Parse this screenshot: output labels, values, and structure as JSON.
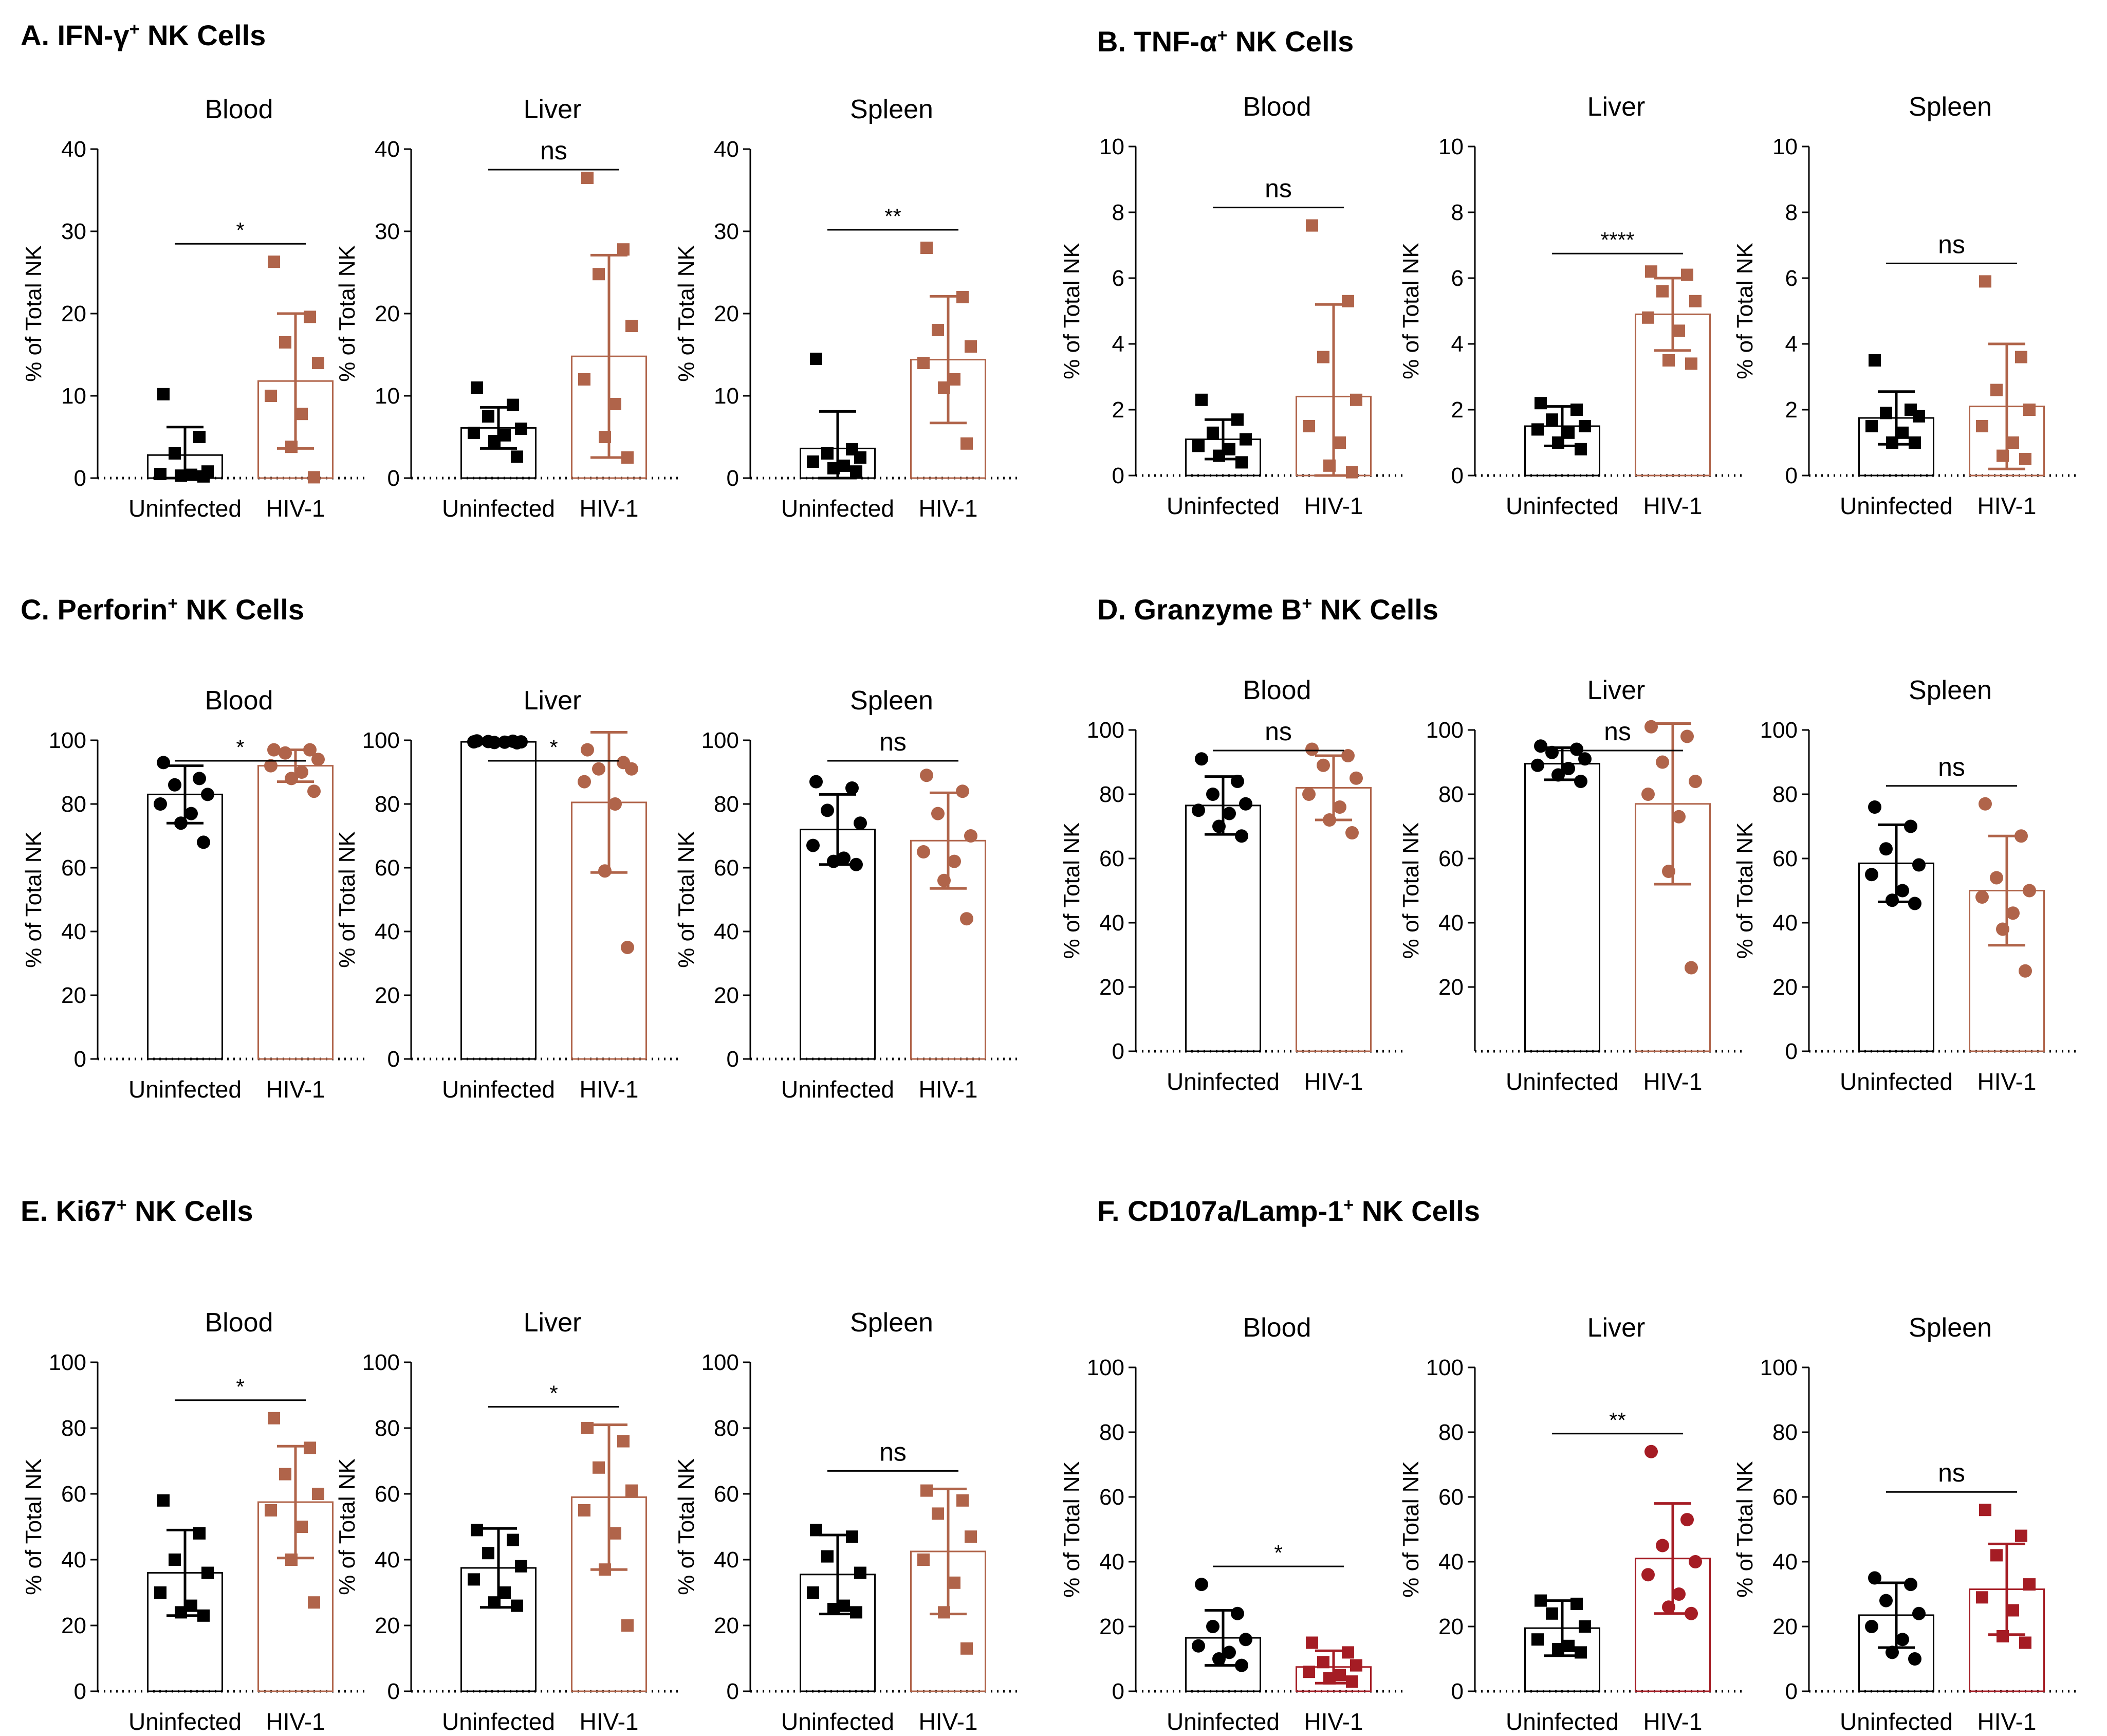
{
  "figure": {
    "y_axis_label": "% of Total NK",
    "group_labels": [
      "Uninfected",
      "HIV-1"
    ]
  },
  "colors": {
    "uninfected": "#000000",
    "hiv_brown": "#b0644a",
    "hiv_red": "#a51c24",
    "axis": "#000000"
  },
  "chart_data": [
    {
      "panel": "A. IFN-γ⁺ NK Cells",
      "type": "bar",
      "charts": [
        {
          "title": "Blood",
          "ylim": [
            0,
            40
          ],
          "ticks": [
            0,
            10,
            20,
            30,
            40
          ],
          "sig": "*",
          "groups": [
            {
              "name": "Uninfected",
              "mean": 2.8,
              "sd": 3.4,
              "marker": "square",
              "points": [
                10.2,
                5.0,
                3.0,
                0.8,
                0.5,
                0.4,
                0.3,
                0.2
              ]
            },
            {
              "name": "HIV-1",
              "mean": 11.8,
              "sd": 8.2,
              "marker": "square",
              "points": [
                26.3,
                19.6,
                16.5,
                14.0,
                10.0,
                7.8,
                3.8,
                0.1
              ]
            }
          ]
        },
        {
          "title": "Liver",
          "ylim": [
            0,
            40
          ],
          "ticks": [
            0,
            10,
            20,
            30,
            40
          ],
          "sig": "ns",
          "groups": [
            {
              "name": "Uninfected",
              "mean": 6.1,
              "sd": 2.5,
              "marker": "square",
              "points": [
                11.0,
                8.9,
                7.5,
                6.0,
                5.5,
                5.2,
                4.5,
                2.6
              ]
            },
            {
              "name": "HIV-1",
              "mean": 14.8,
              "sd": 12.3,
              "marker": "square",
              "points": [
                36.5,
                27.8,
                24.8,
                18.5,
                12.0,
                9.0,
                5.0,
                2.5
              ]
            }
          ]
        },
        {
          "title": "Spleen",
          "ylim": [
            0,
            40
          ],
          "ticks": [
            0,
            10,
            20,
            30,
            40
          ],
          "sig": "**",
          "groups": [
            {
              "name": "Uninfected",
              "mean": 3.6,
              "sd": 4.5,
              "marker": "square",
              "points": [
                14.5,
                3.5,
                3.0,
                2.5,
                2.0,
                1.5,
                1.2,
                0.8
              ]
            },
            {
              "name": "HIV-1",
              "mean": 14.4,
              "sd": 7.7,
              "marker": "square",
              "points": [
                28.0,
                22.0,
                18.0,
                16.0,
                14.0,
                12.0,
                11.0,
                4.2
              ]
            }
          ]
        }
      ]
    },
    {
      "panel": "B. TNF-α⁺ NK Cells",
      "type": "bar",
      "charts": [
        {
          "title": "Blood",
          "ylim": [
            0,
            10
          ],
          "ticks": [
            0,
            2,
            4,
            6,
            8,
            10
          ],
          "sig": "ns",
          "groups": [
            {
              "name": "Uninfected",
              "mean": 1.1,
              "sd": 0.6,
              "marker": "square",
              "points": [
                2.3,
                1.7,
                1.3,
                1.1,
                0.9,
                0.8,
                0.6,
                0.4
              ]
            },
            {
              "name": "HIV-1",
              "mean": 2.4,
              "sd": 2.8,
              "marker": "square",
              "points": [
                7.6,
                5.3,
                3.6,
                2.3,
                1.5,
                1.0,
                0.3,
                0.1
              ]
            }
          ]
        },
        {
          "title": "Liver",
          "ylim": [
            0,
            10
          ],
          "ticks": [
            0,
            2,
            4,
            6,
            8,
            10
          ],
          "sig": "****",
          "groups": [
            {
              "name": "Uninfected",
              "mean": 1.5,
              "sd": 0.6,
              "marker": "square",
              "points": [
                2.2,
                2.0,
                1.7,
                1.5,
                1.4,
                1.3,
                1.0,
                0.8
              ]
            },
            {
              "name": "HIV-1",
              "mean": 4.9,
              "sd": 1.1,
              "marker": "square",
              "points": [
                6.2,
                6.1,
                5.6,
                5.3,
                4.8,
                4.4,
                3.5,
                3.4
              ]
            }
          ]
        },
        {
          "title": "Spleen",
          "ylim": [
            0,
            10
          ],
          "ticks": [
            0,
            2,
            4,
            6,
            8,
            10
          ],
          "sig": "ns",
          "groups": [
            {
              "name": "Uninfected",
              "mean": 1.75,
              "sd": 0.8,
              "marker": "square",
              "points": [
                3.5,
                2.0,
                1.9,
                1.8,
                1.5,
                1.3,
                1.0,
                1.0
              ]
            },
            {
              "name": "HIV-1",
              "mean": 2.1,
              "sd": 1.9,
              "marker": "square",
              "points": [
                5.9,
                3.6,
                2.6,
                2.0,
                1.5,
                1.0,
                0.6,
                0.5
              ]
            }
          ]
        }
      ]
    },
    {
      "panel": "C. Perforin⁺ NK Cells",
      "type": "bar",
      "charts": [
        {
          "title": "Blood",
          "ylim": [
            0,
            100
          ],
          "ticks": [
            0,
            20,
            40,
            60,
            80,
            100
          ],
          "sig": "*",
          "groups": [
            {
              "name": "Uninfected",
              "mean": 83,
              "sd": 9,
              "marker": "circle",
              "points": [
                93,
                88,
                86,
                83,
                80,
                77,
                74,
                68
              ]
            },
            {
              "name": "HIV-1",
              "mean": 92,
              "sd": 5,
              "marker": "circle",
              "points": [
                97,
                97,
                96,
                94,
                92,
                90,
                88,
                84
              ]
            }
          ]
        },
        {
          "title": "Liver",
          "ylim": [
            0,
            100
          ],
          "ticks": [
            0,
            20,
            40,
            60,
            80,
            100
          ],
          "sig": "*",
          "groups": [
            {
              "name": "Uninfected",
              "mean": 99.5,
              "sd": 0.3,
              "marker": "circle",
              "points": [
                99.8,
                99.7,
                99.6,
                99.5,
                99.5,
                99.4,
                99.3,
                99.2
              ]
            },
            {
              "name": "HIV-1",
              "mean": 80.5,
              "sd": 22,
              "marker": "circle",
              "points": [
                97,
                93,
                91,
                91,
                87,
                80,
                59,
                35
              ]
            }
          ]
        },
        {
          "title": "Spleen",
          "ylim": [
            0,
            100
          ],
          "ticks": [
            0,
            20,
            40,
            60,
            80,
            100
          ],
          "sig": "ns",
          "groups": [
            {
              "name": "Uninfected",
              "mean": 72,
              "sd": 11,
              "marker": "circle",
              "points": [
                87,
                85,
                78,
                74,
                67,
                63,
                62,
                61
              ]
            },
            {
              "name": "HIV-1",
              "mean": 68.5,
              "sd": 15,
              "marker": "circle",
              "points": [
                89,
                84,
                77,
                70,
                65,
                62,
                56,
                44
              ]
            }
          ]
        }
      ]
    },
    {
      "panel": "D. Granzyme B⁺ NK Cells",
      "type": "bar",
      "charts": [
        {
          "title": "Blood",
          "ylim": [
            0,
            100
          ],
          "ticks": [
            0,
            20,
            40,
            60,
            80,
            100
          ],
          "sig": "ns",
          "groups": [
            {
              "name": "Uninfected",
              "mean": 76.5,
              "sd": 9,
              "marker": "circle",
              "points": [
                91,
                84,
                80,
                77,
                75,
                74,
                70,
                67
              ]
            },
            {
              "name": "HIV-1",
              "mean": 82,
              "sd": 10,
              "marker": "circle",
              "points": [
                94,
                92,
                89,
                85,
                80,
                76,
                72,
                68
              ]
            }
          ]
        },
        {
          "title": "Liver",
          "ylim": [
            0,
            100
          ],
          "ticks": [
            20,
            40,
            60,
            80,
            100
          ],
          "sig": "ns",
          "groups": [
            {
              "name": "Uninfected",
              "mean": 89.5,
              "sd": 5,
              "marker": "circle",
              "points": [
                95,
                94,
                93,
                91,
                89,
                88,
                86,
                84
              ]
            },
            {
              "name": "HIV-1",
              "mean": 77,
              "sd": 25,
              "marker": "circle",
              "points": [
                101,
                98,
                90,
                84,
                80,
                73,
                56,
                26
              ]
            }
          ]
        },
        {
          "title": "Spleen",
          "ylim": [
            0,
            100
          ],
          "ticks": [
            0,
            20,
            40,
            60,
            80,
            100
          ],
          "sig": "ns",
          "groups": [
            {
              "name": "Uninfected",
              "mean": 58.5,
              "sd": 12,
              "marker": "circle",
              "points": [
                76,
                70,
                63,
                58,
                55,
                50,
                47,
                46
              ]
            },
            {
              "name": "HIV-1",
              "mean": 50,
              "sd": 17,
              "marker": "circle",
              "points": [
                77,
                67,
                54,
                50,
                48,
                43,
                38,
                25
              ]
            }
          ]
        }
      ]
    },
    {
      "panel": "E. Ki67⁺ NK Cells",
      "type": "bar",
      "charts": [
        {
          "title": "Blood",
          "ylim": [
            0,
            100
          ],
          "ticks": [
            0,
            20,
            40,
            60,
            80,
            100
          ],
          "sig": "*",
          "groups": [
            {
              "name": "Uninfected",
              "mean": 36,
              "sd": 13,
              "marker": "square",
              "points": [
                58,
                48,
                40,
                36,
                30,
                26,
                24,
                23
              ]
            },
            {
              "name": "HIV-1",
              "mean": 57.5,
              "sd": 17,
              "marker": "square",
              "points": [
                83,
                74,
                66,
                60,
                55,
                50,
                40,
                27
              ]
            }
          ]
        },
        {
          "title": "Liver",
          "ylim": [
            0,
            100
          ],
          "ticks": [
            0,
            20,
            40,
            60,
            80,
            100
          ],
          "sig": "*",
          "groups": [
            {
              "name": "Uninfected",
              "mean": 37.5,
              "sd": 12,
              "marker": "square",
              "points": [
                49,
                46,
                42,
                38,
                34,
                30,
                27,
                26
              ]
            },
            {
              "name": "HIV-1",
              "mean": 59,
              "sd": 22,
              "marker": "square",
              "points": [
                80,
                76,
                68,
                61,
                55,
                48,
                37,
                20
              ]
            }
          ]
        },
        {
          "title": "Spleen",
          "ylim": [
            0,
            100
          ],
          "ticks": [
            0,
            20,
            40,
            60,
            80,
            100
          ],
          "sig": "ns",
          "groups": [
            {
              "name": "Uninfected",
              "mean": 35.5,
              "sd": 12,
              "marker": "square",
              "points": [
                49,
                47,
                41,
                36,
                30,
                26,
                25,
                24
              ]
            },
            {
              "name": "HIV-1",
              "mean": 42.5,
              "sd": 19,
              "marker": "square",
              "points": [
                61,
                58,
                54,
                47,
                40,
                33,
                24,
                13
              ]
            }
          ]
        }
      ]
    },
    {
      "panel": "F. CD107a/Lamp-1⁺ NK Cells",
      "type": "bar",
      "charts": [
        {
          "title": "Blood",
          "ylim": [
            0,
            100
          ],
          "ticks": [
            0,
            20,
            40,
            60,
            80,
            100
          ],
          "sig": "*",
          "groups": [
            {
              "name": "Uninfected",
              "mean": 16.5,
              "sd": 8.5,
              "marker": "circle",
              "points": [
                33,
                24,
                20,
                16,
                14,
                12,
                10,
                8
              ]
            },
            {
              "name": "HIV-1",
              "mean": 7.5,
              "sd": 5,
              "marker": "square",
              "points": [
                15,
                12,
                9,
                8,
                6,
                5,
                4,
                3
              ]
            }
          ]
        },
        {
          "title": "Liver",
          "ylim": [
            0,
            100
          ],
          "ticks": [
            0,
            20,
            40,
            60,
            80,
            100
          ],
          "sig": "**",
          "groups": [
            {
              "name": "Uninfected",
              "mean": 19.5,
              "sd": 8.5,
              "marker": "square",
              "points": [
                28,
                27,
                24,
                20,
                16,
                14,
                13,
                12
              ]
            },
            {
              "name": "HIV-1",
              "mean": 41,
              "sd": 17,
              "marker": "circle",
              "points": [
                74,
                53,
                45,
                40,
                36,
                30,
                26,
                24
              ]
            }
          ]
        },
        {
          "title": "Spleen",
          "ylim": [
            0,
            100
          ],
          "ticks": [
            0,
            20,
            40,
            60,
            80,
            100
          ],
          "sig": "ns",
          "groups": [
            {
              "name": "Uninfected",
              "mean": 23.5,
              "sd": 10,
              "marker": "circle",
              "points": [
                35,
                33,
                28,
                24,
                20,
                16,
                12,
                10
              ]
            },
            {
              "name": "HIV-1",
              "mean": 31.5,
              "sd": 14,
              "marker": "square",
              "points": [
                56,
                48,
                42,
                33,
                29,
                25,
                17,
                15
              ]
            }
          ]
        }
      ]
    }
  ]
}
